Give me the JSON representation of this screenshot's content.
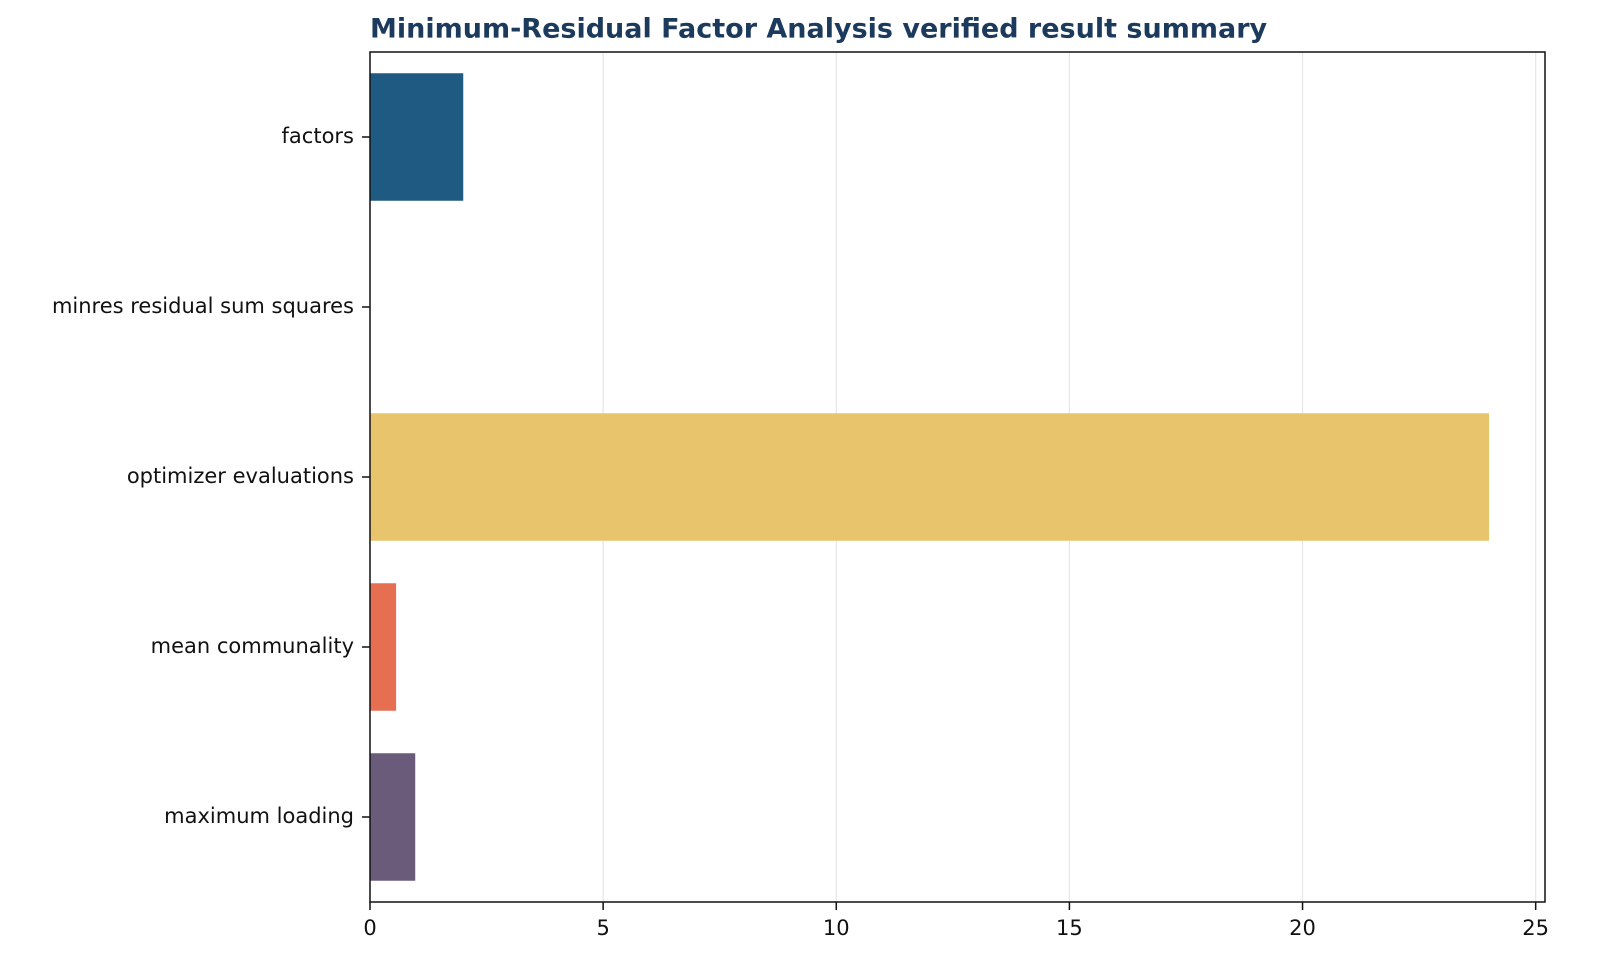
{
  "chart_data": {
    "type": "bar",
    "orientation": "horizontal",
    "title": "Minimum-Residual Factor Analysis verified result summary",
    "categories": [
      "factors",
      "minres residual sum squares",
      "optimizer evaluations",
      "mean communality",
      "maximum loading"
    ],
    "values": [
      2,
      0.01,
      24,
      0.56,
      0.97
    ],
    "colors": [
      "#1f5a82",
      "#2a9d8f",
      "#e8c46c",
      "#e76f51",
      "#6b5b7b"
    ],
    "xlim": [
      0,
      25.2
    ],
    "xticks": [
      0,
      5,
      10,
      15,
      20,
      25
    ],
    "grid": true
  }
}
